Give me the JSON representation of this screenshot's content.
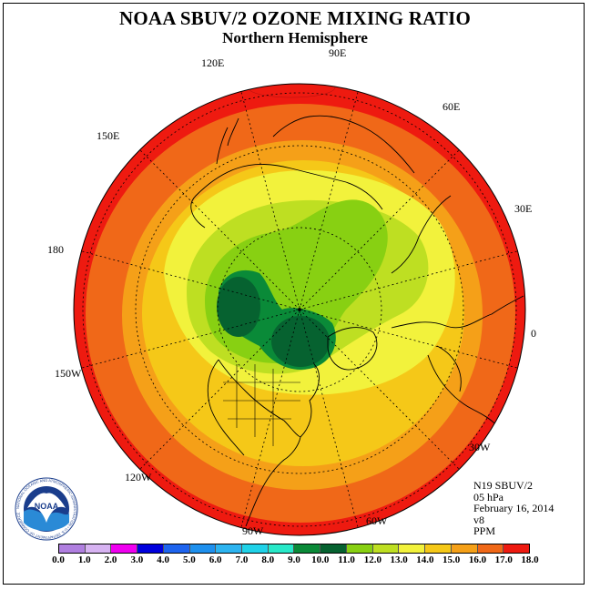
{
  "title": "NOAA SBUV/2 OZONE MIXING RATIO",
  "subtitle": "Northern Hemisphere",
  "longitude_labels": [
    "90E",
    "60E",
    "30E",
    "0",
    "30W",
    "60W",
    "90W",
    "120W",
    "150W",
    "180",
    "150E",
    "120E"
  ],
  "info": {
    "instrument": "N19 SBUV/2",
    "level": "05 hPa",
    "date": "February 16, 2014",
    "version": "v8",
    "units": "PPM"
  },
  "colorbar": {
    "ticks": [
      "0.0",
      "1.0",
      "2.0",
      "3.0",
      "4.0",
      "5.0",
      "6.0",
      "7.0",
      "8.0",
      "9.0",
      "10.0",
      "11.0",
      "12.0",
      "13.0",
      "14.0",
      "15.0",
      "16.0",
      "17.0",
      "18.0"
    ],
    "colors": [
      "#b07fe0",
      "#d7b3f2",
      "#f000f0",
      "#0000dd",
      "#1e64ee",
      "#1e90ee",
      "#2db4f0",
      "#20d2e8",
      "#28e8c8",
      "#0a8a38",
      "#066230",
      "#88d012",
      "#bedf22",
      "#f2f23c",
      "#f5c818",
      "#f5a018",
      "#f06818",
      "#ee1a10",
      "#8a5a3c"
    ]
  },
  "logo": {
    "text": "NOAA",
    "ring_text": "NATIONAL OCEANIC AND ATMOSPHERIC ADMINISTRATION • U.S. DEPARTMENT OF COMMERCE"
  },
  "ozone_levels_ppm": {
    "outer_ring": "16-17",
    "equator_zone": "15-16",
    "midlatitude": "13-14",
    "polar_minimum": "9-10",
    "north_pacific_minimum": "9-10",
    "aleutian_max": "17-18"
  }
}
